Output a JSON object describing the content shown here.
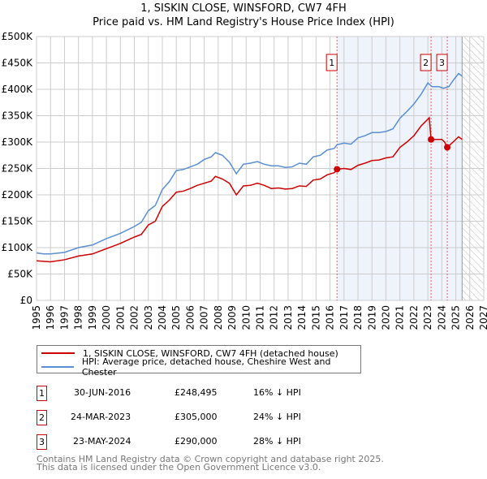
{
  "title": "1, SISKIN CLOSE, WINSFORD, CW7 4FH",
  "subtitle": "Price paid vs. HM Land Registry's House Price Index (HPI)",
  "legend": [
    {
      "label": "1, SISKIN CLOSE, WINSFORD, CW7 4FH (detached house)",
      "color": "#cc0000"
    },
    {
      "label": "HPI: Average price, detached house, Cheshire West and Chester",
      "color": "#5b8fd1"
    }
  ],
  "sales": [
    {
      "num": "1",
      "date": "30-JUN-2016",
      "price": "£248,495",
      "delta": "16% ↓ HPI"
    },
    {
      "num": "2",
      "date": "24-MAR-2023",
      "price": "£305,000",
      "delta": "24% ↓ HPI"
    },
    {
      "num": "3",
      "date": "23-MAY-2024",
      "price": "£290,000",
      "delta": "28% ↓ HPI"
    }
  ],
  "footer": [
    "Contains HM Land Registry data © Crown copyright and database right 2025.",
    "This data is licensed under the Open Government Licence v3.0."
  ],
  "chart_data": {
    "type": "line",
    "title": "1, SISKIN CLOSE, WINSFORD, CW7 4FH — Price paid vs. HM Land Registry's House Price Index (HPI)",
    "xlim": [
      1995,
      2027
    ],
    "ylim": [
      0,
      500000
    ],
    "xticks": [
      "1995",
      "1996",
      "1997",
      "1998",
      "1999",
      "2000",
      "2001",
      "2002",
      "2003",
      "2004",
      "2005",
      "2006",
      "2007",
      "2008",
      "2009",
      "2010",
      "2011",
      "2012",
      "2013",
      "2014",
      "2015",
      "2016",
      "2017",
      "2018",
      "2019",
      "2020",
      "2021",
      "2022",
      "2023",
      "2024",
      "2025",
      "2026",
      "2027"
    ],
    "yticks": [
      {
        "v": 0,
        "label": "£0"
      },
      {
        "v": 50000,
        "label": "£50K"
      },
      {
        "v": 100000,
        "label": "£100K"
      },
      {
        "v": 150000,
        "label": "£150K"
      },
      {
        "v": 200000,
        "label": "£200K"
      },
      {
        "v": 250000,
        "label": "£250K"
      },
      {
        "v": 300000,
        "label": "£300K"
      },
      {
        "v": 350000,
        "label": "£350K"
      },
      {
        "v": 400000,
        "label": "£400K"
      },
      {
        "v": 450000,
        "label": "£450K"
      },
      {
        "v": 500000,
        "label": "£500K"
      }
    ],
    "grid": true,
    "shaded_range": [
      2016.5,
      2025.45
    ],
    "forecast_hatched_from": 2025.45,
    "series": [
      {
        "name": "HPI: Average price, detached house, Cheshire West and Chester",
        "color": "#5b8fd1",
        "x": [
          1995,
          1995.5,
          1996,
          1997,
          1998,
          1999,
          2000,
          2001,
          2002,
          2002.5,
          2003,
          2003.5,
          2004,
          2004.5,
          2005,
          2005.5,
          2006,
          2006.5,
          2007,
          2007.5,
          2007.8,
          2008.3,
          2008.8,
          2009.3,
          2009.8,
          2010.3,
          2010.8,
          2011.3,
          2011.8,
          2012.3,
          2012.8,
          2013.3,
          2013.8,
          2014.3,
          2014.8,
          2015.3,
          2015.8,
          2016.3,
          2016.5,
          2017,
          2017.5,
          2018,
          2018.5,
          2019,
          2019.5,
          2020,
          2020.5,
          2021,
          2021.5,
          2022,
          2022.5,
          2023,
          2023.3,
          2023.8,
          2024.1,
          2024.5,
          2024.9,
          2025.2,
          2025.45
        ],
        "y": [
          90000,
          88000,
          88000,
          91000,
          100000,
          105000,
          117000,
          127000,
          140000,
          148000,
          170000,
          180000,
          210000,
          225000,
          246000,
          248000,
          253000,
          258000,
          267000,
          272000,
          280000,
          275000,
          262000,
          240000,
          258000,
          260000,
          263000,
          258000,
          255000,
          255000,
          252000,
          253000,
          260000,
          258000,
          272000,
          275000,
          285000,
          288000,
          295000,
          298000,
          296000,
          308000,
          312000,
          318000,
          318000,
          320000,
          325000,
          345000,
          358000,
          372000,
          390000,
          412000,
          405000,
          405000,
          402000,
          405000,
          420000,
          430000,
          425000
        ]
      },
      {
        "name": "1, SISKIN CLOSE, WINSFORD, CW7 4FH (detached house)",
        "color": "#cc0000",
        "x": [
          1995,
          1996,
          1997,
          1998,
          1999,
          2000,
          2001,
          2002,
          2002.5,
          2003,
          2003.5,
          2004,
          2004.5,
          2005,
          2005.5,
          2006,
          2006.5,
          2007,
          2007.5,
          2007.8,
          2008.3,
          2008.8,
          2009.3,
          2009.8,
          2010.3,
          2010.8,
          2011.3,
          2011.8,
          2012.3,
          2012.8,
          2013.3,
          2013.8,
          2014.3,
          2014.8,
          2015.3,
          2015.8,
          2016.3,
          2016.5,
          2017,
          2017.5,
          2018,
          2018.5,
          2019,
          2019.5,
          2020,
          2020.5,
          2021,
          2021.5,
          2022,
          2022.5,
          2023.1,
          2023.23,
          2023.6,
          2024,
          2024.2,
          2024.39,
          2024.8,
          2025.2,
          2025.45
        ],
        "y": [
          75000,
          73000,
          77000,
          84000,
          88000,
          98000,
          108000,
          120000,
          125000,
          143000,
          150000,
          178000,
          190000,
          205000,
          207000,
          212000,
          218000,
          222000,
          226000,
          235000,
          230000,
          222000,
          200000,
          217000,
          218000,
          222000,
          218000,
          212000,
          213000,
          211000,
          212000,
          217000,
          216000,
          228000,
          230000,
          238000,
          242000,
          248495,
          250000,
          248000,
          256000,
          260000,
          265000,
          266000,
          270000,
          272000,
          290000,
          300000,
          312000,
          330000,
          346000,
          305000,
          305000,
          305000,
          300000,
          290000,
          300000,
          310000,
          305000
        ]
      }
    ],
    "sales_markers": [
      {
        "label": "1",
        "x": 2016.5,
        "y": 248495
      },
      {
        "label": "2",
        "x": 2023.23,
        "y": 305000
      },
      {
        "label": "3",
        "x": 2024.39,
        "y": 290000
      }
    ]
  }
}
